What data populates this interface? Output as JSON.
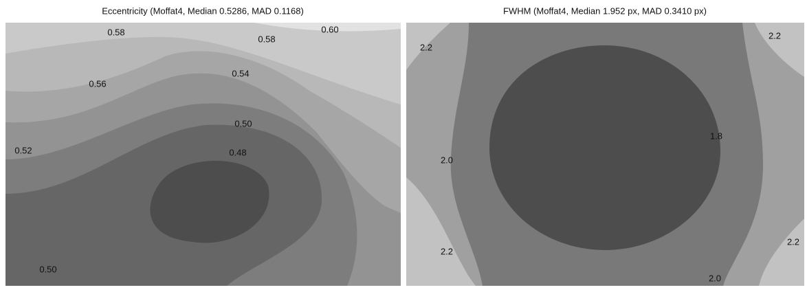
{
  "chart_data": [
    {
      "type": "contour",
      "title": "Eccentricity (Moffat4, Median 0.5286, MAD 0.1168)",
      "levels": [
        0.48,
        0.5,
        0.52,
        0.54,
        0.56,
        0.58,
        0.6
      ],
      "colors": [
        "#4d4d4d",
        "#666666",
        "#7d7d7d",
        "#939393",
        "#a6a6a6",
        "#b8b8b8",
        "#c9c9c9",
        "#e2e2e2"
      ],
      "contour_labels": [
        {
          "value": 0.58,
          "label": "0.58"
        },
        {
          "value": 0.58,
          "label": "0.58"
        },
        {
          "value": 0.6,
          "label": "0.60"
        },
        {
          "value": 0.56,
          "label": "0.56"
        },
        {
          "value": 0.54,
          "label": "0.54"
        },
        {
          "value": 0.52,
          "label": "0.52"
        },
        {
          "value": 0.5,
          "label": "0.50"
        },
        {
          "value": 0.48,
          "label": "0.48"
        },
        {
          "value": 0.5,
          "label": "0.50"
        }
      ]
    },
    {
      "type": "contour",
      "title": "FWHM (Moffat4, Median 1.952 px, MAD 0.3410 px)",
      "levels": [
        1.8,
        2.0,
        2.2
      ],
      "colors": [
        "#4d4d4d",
        "#797979",
        "#a0a0a0",
        "#c2c2c2"
      ],
      "contour_labels": [
        {
          "value": 2.2,
          "label": "2.2"
        },
        {
          "value": 2.2,
          "label": "2.2"
        },
        {
          "value": 1.8,
          "label": "1.8"
        },
        {
          "value": 2.0,
          "label": "2.0"
        },
        {
          "value": 2.2,
          "label": "2.2"
        },
        {
          "value": 2.2,
          "label": "2.2"
        },
        {
          "value": 2.0,
          "label": "2.0"
        }
      ]
    }
  ]
}
